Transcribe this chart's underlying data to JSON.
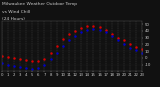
{
  "title": "Milwaukee Weather Outdoor Temp",
  "title2": "vs Wind Chill",
  "title3": "(24 Hours)",
  "temp_times": [
    0,
    1,
    2,
    3,
    4,
    5,
    6,
    7,
    8,
    9,
    10,
    11,
    12,
    13,
    14,
    15,
    16,
    17,
    18,
    19,
    20,
    21,
    22,
    23
  ],
  "temp_vals": [
    3,
    1,
    0,
    -1,
    -3,
    -5,
    -4,
    -2,
    8,
    18,
    28,
    36,
    40,
    44,
    47,
    48,
    46,
    42,
    36,
    30,
    26,
    20,
    16,
    13
  ],
  "wind_times": [
    0,
    1,
    2,
    3,
    4,
    5,
    6,
    7,
    8,
    9,
    10,
    11,
    12,
    13,
    14,
    15,
    16,
    17,
    18,
    19,
    20,
    21,
    22,
    23
  ],
  "wind_vals": [
    -8,
    -10,
    -12,
    -13,
    -15,
    -17,
    -15,
    -11,
    -2,
    8,
    18,
    27,
    33,
    38,
    42,
    43,
    42,
    38,
    32,
    26,
    21,
    15,
    11,
    8
  ],
  "temp_color": "#dd0000",
  "wind_color": "#0000cc",
  "bg_color": "#111111",
  "plot_bg_color": "#111111",
  "grid_color": "#555555",
  "tick_color": "#cccccc",
  "title_color": "#cccccc",
  "ylim": [
    -20,
    55
  ],
  "xlim": [
    0,
    23
  ],
  "yticks": [
    -10,
    0,
    10,
    20,
    30,
    40,
    50
  ],
  "xticks": [
    0,
    1,
    2,
    3,
    4,
    5,
    6,
    7,
    8,
    9,
    10,
    11,
    12,
    13,
    14,
    15,
    16,
    17,
    18,
    19,
    20,
    21,
    22,
    23
  ],
  "xlabel_fontsize": 2.8,
  "ylabel_fontsize": 2.8,
  "title_fontsize": 3.2,
  "marker_size": 1.5
}
